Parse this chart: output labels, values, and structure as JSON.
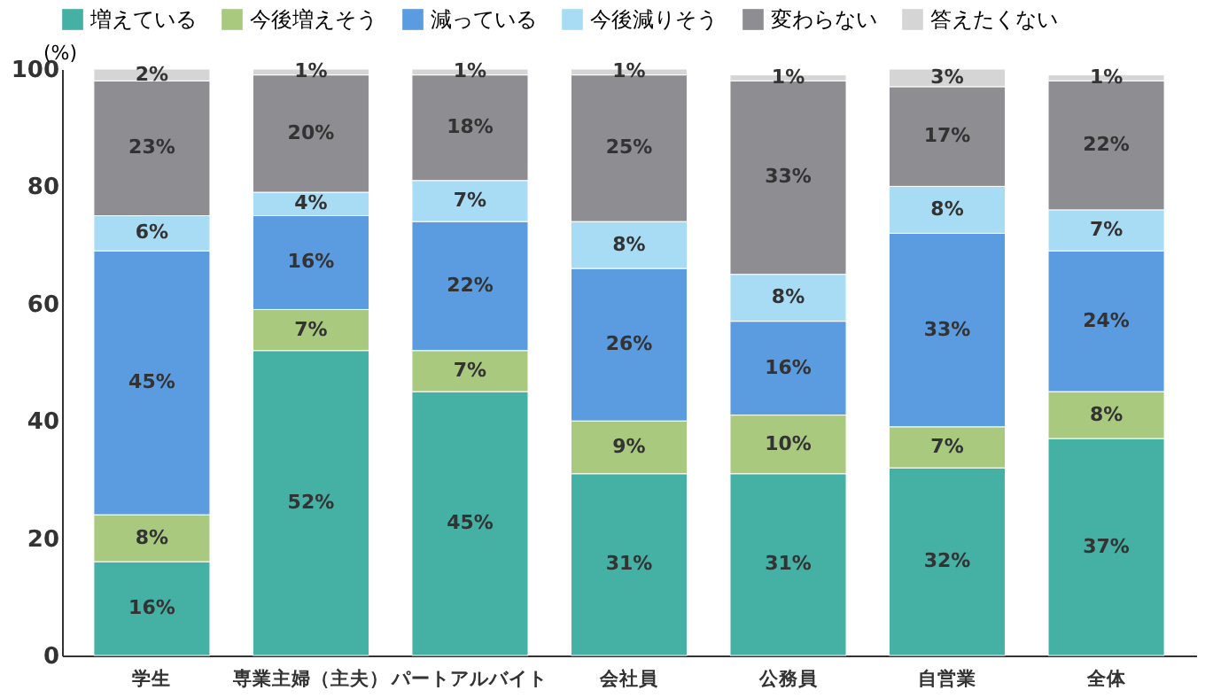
{
  "chart_data": {
    "type": "bar",
    "stacked": true,
    "ylabel": "(%)",
    "ylim": [
      0,
      100
    ],
    "yticks": [
      0,
      20,
      40,
      60,
      80,
      100
    ],
    "grid": false,
    "legend": "top left",
    "categories": [
      "学生",
      "専業主婦（主夫）",
      "パートアルバイト",
      "会社員",
      "公務員",
      "自営業",
      "全体"
    ],
    "series": [
      {
        "name": "増えている",
        "color": "#45b0a4",
        "values": [
          16,
          52,
          45,
          31,
          31,
          32,
          37
        ],
        "value_labels": [
          "16%",
          "52%",
          "45%",
          "31%",
          "31%",
          "32%",
          "37%"
        ]
      },
      {
        "name": "今後増えそう",
        "color": "#a9c97f",
        "values": [
          8,
          7,
          7,
          9,
          10,
          7,
          8
        ],
        "value_labels": [
          "8%",
          "7%",
          "7%",
          "9%",
          "10%",
          "7%",
          "8%"
        ]
      },
      {
        "name": "減っている",
        "color": "#5b9be0",
        "values": [
          45,
          16,
          22,
          26,
          16,
          33,
          24
        ],
        "value_labels": [
          "45%",
          "16%",
          "22%",
          "26%",
          "16%",
          "33%",
          "24%"
        ]
      },
      {
        "name": "今後減りそう",
        "color": "#a8dcf5",
        "values": [
          6,
          4,
          7,
          8,
          8,
          8,
          7
        ],
        "value_labels": [
          "6%",
          "4%",
          "7%",
          "8%",
          "8%",
          "8%",
          "7%"
        ]
      },
      {
        "name": "変わらない",
        "color": "#8e8d92",
        "values": [
          23,
          20,
          18,
          25,
          33,
          17,
          22
        ],
        "value_labels": [
          "23%",
          "20%",
          "18%",
          "25%",
          "33%",
          "17%",
          "22%"
        ]
      },
      {
        "name": "答えたくない",
        "color": "#d5d5d5",
        "values": [
          2,
          1,
          1,
          1,
          1,
          3,
          1
        ],
        "value_labels": [
          "2%",
          "1%",
          "1%",
          "1%",
          "1%",
          "3%",
          "1%"
        ]
      }
    ]
  }
}
